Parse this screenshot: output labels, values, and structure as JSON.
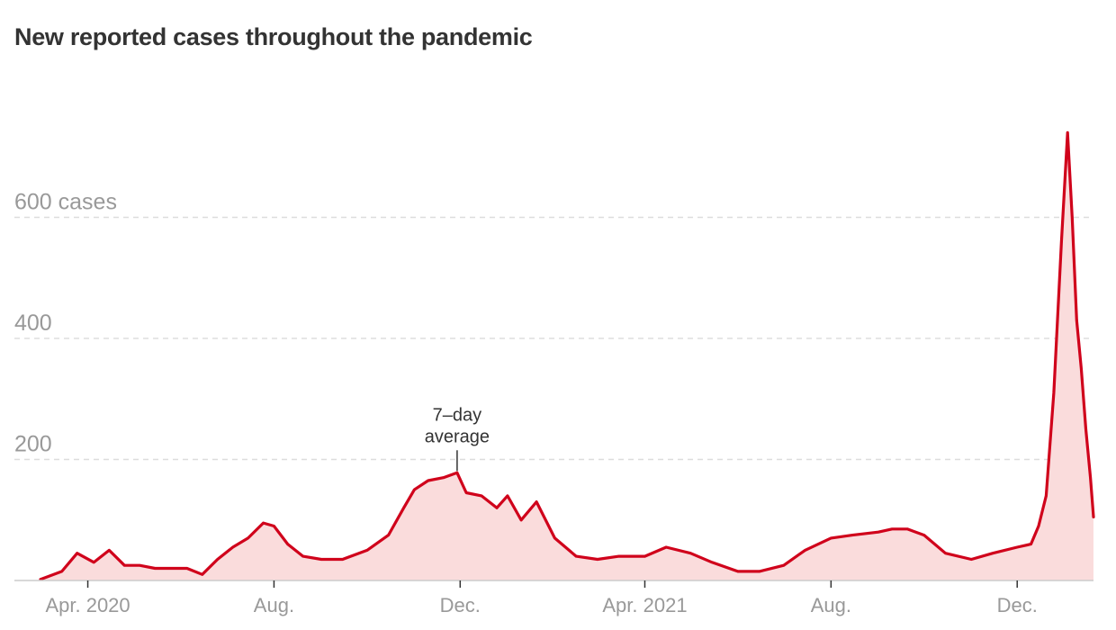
{
  "chart_data": {
    "type": "area",
    "title": "New reported cases throughout the pandemic",
    "yunit_label": "cases",
    "ylim": [
      0,
      750
    ],
    "y_ticks": [
      {
        "value": 200,
        "label": "200"
      },
      {
        "value": 400,
        "label": "400"
      },
      {
        "value": 600,
        "label": "600 cases"
      }
    ],
    "x_ticks": [
      {
        "date": "2020-04-01",
        "label": "Apr. 2020"
      },
      {
        "date": "2020-08-01",
        "label": "Aug."
      },
      {
        "date": "2020-12-01",
        "label": "Dec."
      },
      {
        "date": "2021-04-01",
        "label": "Apr. 2021"
      },
      {
        "date": "2021-08-01",
        "label": "Aug."
      },
      {
        "date": "2021-12-01",
        "label": "Dec."
      }
    ],
    "xlim": [
      "2020-03-01",
      "2022-01-20"
    ],
    "grid": "horizontal dashed",
    "annotation": {
      "lines": [
        "7–day",
        "average"
      ],
      "date": "2020-11-29",
      "value": 178
    },
    "series": [
      {
        "x": [
          "2020-03-01",
          "2020-03-15",
          "2020-03-25",
          "2020-04-05",
          "2020-04-15",
          "2020-04-25",
          "2020-05-05",
          "2020-05-15",
          "2020-05-25",
          "2020-06-05",
          "2020-06-15",
          "2020-06-25",
          "2020-07-05",
          "2020-07-15",
          "2020-07-25",
          "2020-08-01",
          "2020-08-10",
          "2020-08-20",
          "2020-09-01",
          "2020-09-15",
          "2020-10-01",
          "2020-10-15",
          "2020-10-25",
          "2020-11-01",
          "2020-11-10",
          "2020-11-20",
          "2020-11-29",
          "2020-12-05",
          "2020-12-15",
          "2020-12-25",
          "2021-01-01",
          "2021-01-10",
          "2021-01-20",
          "2021-02-01",
          "2021-02-15",
          "2021-03-01",
          "2021-03-15",
          "2021-04-01",
          "2021-04-15",
          "2021-05-01",
          "2021-05-15",
          "2021-06-01",
          "2021-06-15",
          "2021-07-01",
          "2021-07-15",
          "2021-08-01",
          "2021-08-15",
          "2021-09-01",
          "2021-09-10",
          "2021-09-20",
          "2021-10-01",
          "2021-10-15",
          "2021-11-01",
          "2021-11-15",
          "2021-12-01",
          "2021-12-10",
          "2021-12-15",
          "2021-12-20",
          "2021-12-25",
          "2021-12-30",
          "2022-01-03",
          "2022-01-06",
          "2022-01-09",
          "2022-01-12",
          "2022-01-15",
          "2022-01-18",
          "2022-01-20"
        ],
        "y": [
          2,
          15,
          45,
          30,
          50,
          25,
          25,
          20,
          20,
          20,
          10,
          35,
          55,
          70,
          95,
          90,
          60,
          40,
          35,
          35,
          50,
          75,
          120,
          150,
          165,
          170,
          178,
          145,
          140,
          120,
          140,
          100,
          130,
          70,
          40,
          35,
          40,
          40,
          55,
          45,
          30,
          15,
          15,
          25,
          50,
          70,
          75,
          80,
          85,
          85,
          75,
          45,
          35,
          45,
          55,
          60,
          90,
          140,
          310,
          560,
          740,
          600,
          430,
          350,
          250,
          170,
          105
        ]
      }
    ]
  }
}
